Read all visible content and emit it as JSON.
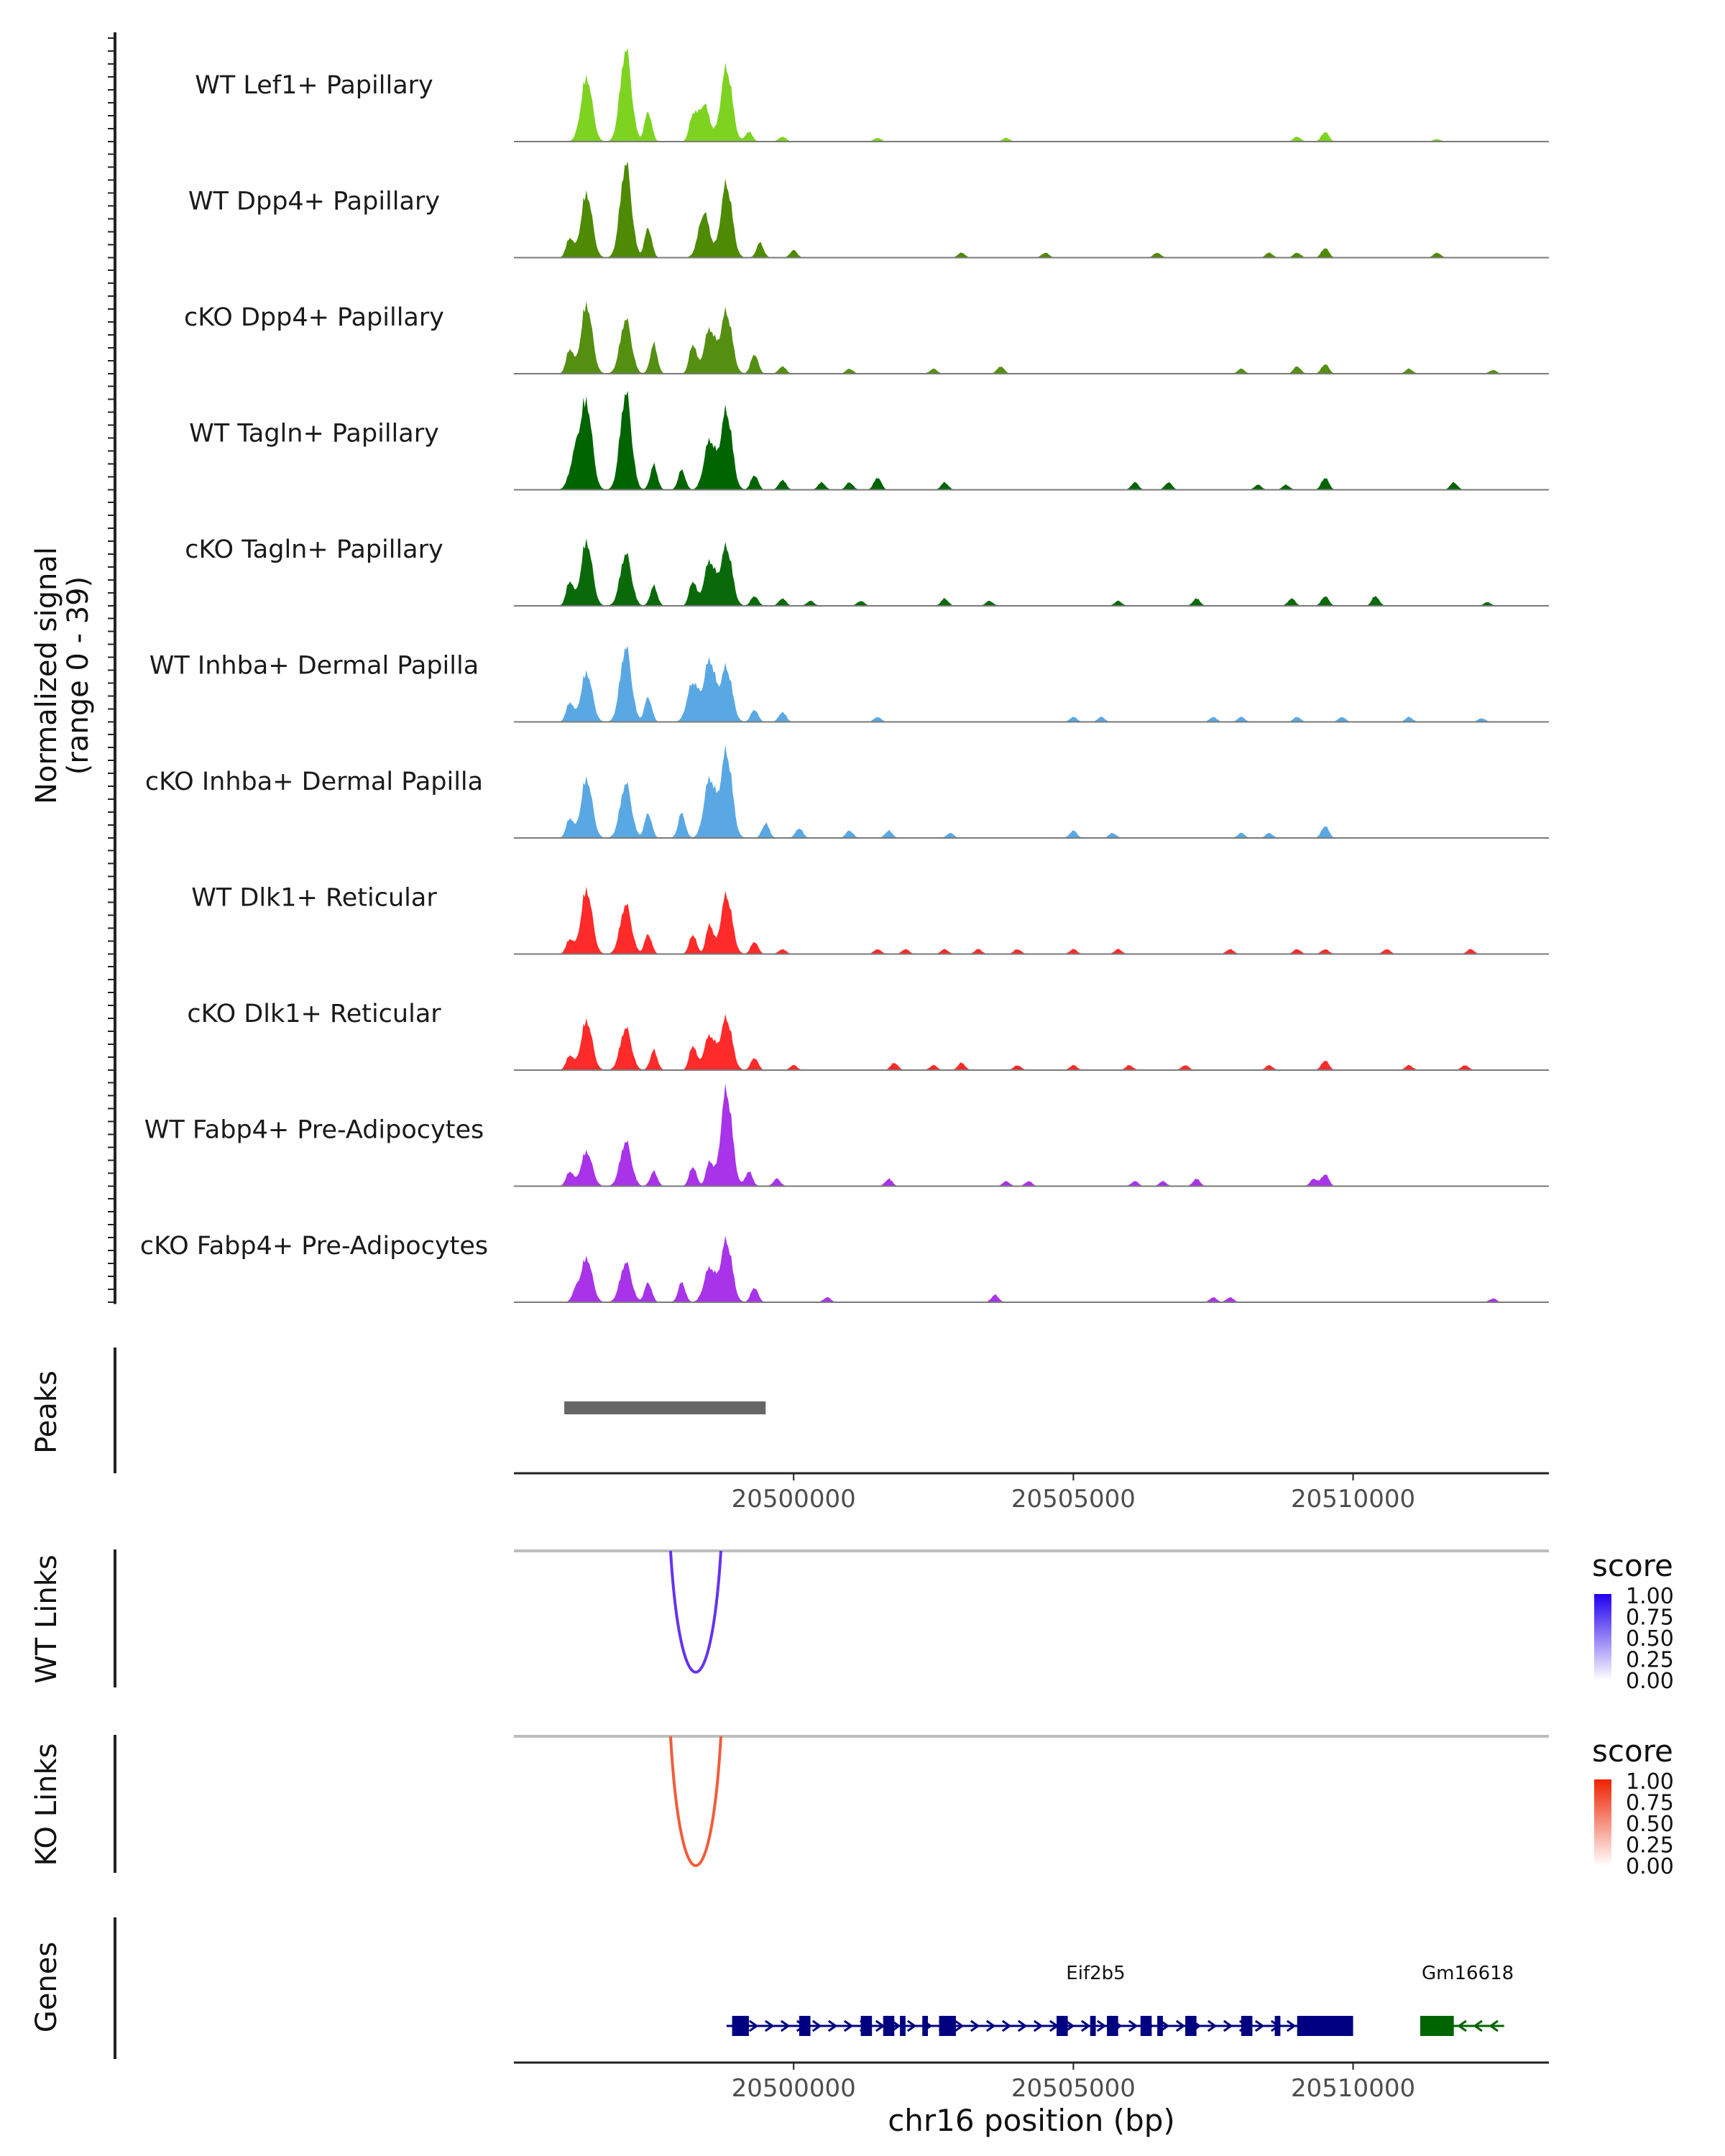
{
  "chart_data": {
    "type": "area",
    "title": "",
    "region": "chr16",
    "xlabel": "chr16 position (bp)",
    "x_tick_labels": [
      "20500000",
      "20505000",
      "20510000"
    ],
    "x_ticks": [
      20500000,
      20505000,
      20510000
    ],
    "xlim": [
      20495000,
      20513500
    ],
    "coverage": {
      "ylabel_line1": "Normalized signal",
      "ylabel_line2": "(range 0 - 39)",
      "ylim": [
        0,
        39
      ],
      "tracks": [
        {
          "name": "WT Lef1+ Papillary",
          "color": "#7ED321",
          "peaks": [
            [
              20496300,
              26
            ],
            [
              20497000,
              37
            ],
            [
              20497400,
              12
            ],
            [
              20498200,
              10
            ],
            [
              20498400,
              15
            ],
            [
              20498800,
              30
            ],
            [
              20499200,
              4
            ],
            [
              20499800,
              2
            ],
            [
              20501500,
              1.5
            ],
            [
              20503800,
              1.5
            ],
            [
              20509000,
              2
            ],
            [
              20509500,
              4
            ],
            [
              20511500,
              1
            ]
          ]
        },
        {
          "name": "WT Dpp4+ Papillary",
          "color": "#4E8A03",
          "peaks": [
            [
              20496000,
              8
            ],
            [
              20496300,
              26
            ],
            [
              20497000,
              38
            ],
            [
              20497400,
              12
            ],
            [
              20498400,
              18
            ],
            [
              20498800,
              30
            ],
            [
              20499400,
              6
            ],
            [
              20500000,
              3
            ],
            [
              20503000,
              2
            ],
            [
              20504500,
              2
            ],
            [
              20506500,
              2
            ],
            [
              20508500,
              2
            ],
            [
              20509000,
              2
            ],
            [
              20509500,
              4
            ],
            [
              20511500,
              2
            ]
          ]
        },
        {
          "name": "cKO Dpp4+ Papillary",
          "color": "#548F12",
          "peaks": [
            [
              20496000,
              10
            ],
            [
              20496300,
              28
            ],
            [
              20497000,
              22
            ],
            [
              20497500,
              12
            ],
            [
              20498200,
              12
            ],
            [
              20498500,
              18
            ],
            [
              20498800,
              25
            ],
            [
              20499300,
              8
            ],
            [
              20499800,
              3
            ],
            [
              20501000,
              2
            ],
            [
              20502500,
              2
            ],
            [
              20503700,
              3
            ],
            [
              20508000,
              2
            ],
            [
              20509000,
              3
            ],
            [
              20509500,
              4
            ],
            [
              20511000,
              2
            ],
            [
              20512500,
              1.5
            ]
          ]
        },
        {
          "name": "WT Tagln+ Papillary",
          "color": "#006400",
          "peaks": [
            [
              20496100,
              14
            ],
            [
              20496300,
              34
            ],
            [
              20497000,
              39
            ],
            [
              20497500,
              10
            ],
            [
              20498000,
              8
            ],
            [
              20498500,
              20
            ],
            [
              20498800,
              32
            ],
            [
              20499300,
              6
            ],
            [
              20499800,
              4
            ],
            [
              20500500,
              3
            ],
            [
              20501000,
              3
            ],
            [
              20501500,
              5
            ],
            [
              20502700,
              3
            ],
            [
              20506100,
              3
            ],
            [
              20506700,
              3
            ],
            [
              20508300,
              2
            ],
            [
              20508800,
              2
            ],
            [
              20509500,
              5
            ],
            [
              20511800,
              3
            ]
          ]
        },
        {
          "name": "cKO Tagln+ Papillary",
          "color": "#0A6A0A",
          "peaks": [
            [
              20496000,
              10
            ],
            [
              20496300,
              26
            ],
            [
              20497000,
              21
            ],
            [
              20497500,
              8
            ],
            [
              20498200,
              10
            ],
            [
              20498500,
              18
            ],
            [
              20498800,
              24
            ],
            [
              20499300,
              4
            ],
            [
              20499800,
              3
            ],
            [
              20500300,
              2
            ],
            [
              20501200,
              2
            ],
            [
              20502700,
              3
            ],
            [
              20503500,
              2
            ],
            [
              20505800,
              2
            ],
            [
              20507200,
              3
            ],
            [
              20508900,
              3
            ],
            [
              20509500,
              4
            ],
            [
              20510400,
              4
            ],
            [
              20512400,
              1.5
            ]
          ]
        },
        {
          "name": "WT Inhba+ Dermal Papilla",
          "color": "#5AA8E3",
          "peaks": [
            [
              20496000,
              8
            ],
            [
              20496300,
              20
            ],
            [
              20497000,
              30
            ],
            [
              20497400,
              10
            ],
            [
              20498200,
              16
            ],
            [
              20498500,
              25
            ],
            [
              20498800,
              22
            ],
            [
              20499300,
              5
            ],
            [
              20499800,
              4
            ],
            [
              20501500,
              2
            ],
            [
              20505000,
              2
            ],
            [
              20505500,
              2
            ],
            [
              20507500,
              2
            ],
            [
              20508000,
              2
            ],
            [
              20509000,
              2
            ],
            [
              20509800,
              2
            ],
            [
              20511000,
              2
            ],
            [
              20512300,
              1.5
            ]
          ]
        },
        {
          "name": "cKO Inhba+ Dermal Papilla",
          "color": "#5AA8E3",
          "peaks": [
            [
              20496000,
              8
            ],
            [
              20496300,
              24
            ],
            [
              20497000,
              22
            ],
            [
              20497400,
              10
            ],
            [
              20498000,
              10
            ],
            [
              20498500,
              24
            ],
            [
              20498800,
              35
            ],
            [
              20499500,
              6
            ],
            [
              20500100,
              4
            ],
            [
              20501000,
              3
            ],
            [
              20501700,
              3
            ],
            [
              20502800,
              2
            ],
            [
              20505000,
              3
            ],
            [
              20505700,
              2
            ],
            [
              20508000,
              2
            ],
            [
              20508500,
              2
            ],
            [
              20509500,
              5
            ]
          ]
        },
        {
          "name": "WT Dlk1+ Reticular",
          "color": "#FF2A2A",
          "peaks": [
            [
              20496000,
              6
            ],
            [
              20496300,
              26
            ],
            [
              20497000,
              20
            ],
            [
              20497400,
              8
            ],
            [
              20498200,
              8
            ],
            [
              20498500,
              12
            ],
            [
              20498800,
              24
            ],
            [
              20499300,
              5
            ],
            [
              20499800,
              2
            ],
            [
              20501500,
              2
            ],
            [
              20502000,
              2
            ],
            [
              20502700,
              2
            ],
            [
              20503300,
              2
            ],
            [
              20504000,
              2
            ],
            [
              20505000,
              2
            ],
            [
              20505800,
              2
            ],
            [
              20507800,
              2
            ],
            [
              20509000,
              2
            ],
            [
              20509500,
              2
            ],
            [
              20510600,
              2
            ],
            [
              20512100,
              2
            ]
          ]
        },
        {
          "name": "cKO Dlk1+ Reticular",
          "color": "#FF2A2A",
          "peaks": [
            [
              20496000,
              6
            ],
            [
              20496300,
              20
            ],
            [
              20497000,
              17
            ],
            [
              20497500,
              8
            ],
            [
              20498200,
              10
            ],
            [
              20498500,
              14
            ],
            [
              20498800,
              21
            ],
            [
              20499300,
              5
            ],
            [
              20500000,
              2
            ],
            [
              20501800,
              3
            ],
            [
              20502500,
              2
            ],
            [
              20503000,
              3
            ],
            [
              20504000,
              2
            ],
            [
              20505000,
              2
            ],
            [
              20506000,
              2
            ],
            [
              20507000,
              2
            ],
            [
              20508500,
              2
            ],
            [
              20509500,
              4
            ],
            [
              20511000,
              2
            ],
            [
              20512000,
              2
            ]
          ]
        },
        {
          "name": "WT Fabp4+ Pre-Adipocytes",
          "color": "#A833E8",
          "peaks": [
            [
              20496000,
              6
            ],
            [
              20496300,
              14
            ],
            [
              20497000,
              18
            ],
            [
              20497500,
              6
            ],
            [
              20498200,
              8
            ],
            [
              20498500,
              10
            ],
            [
              20498800,
              39
            ],
            [
              20499200,
              6
            ],
            [
              20499700,
              3
            ],
            [
              20501700,
              3
            ],
            [
              20503800,
              2
            ],
            [
              20504200,
              2
            ],
            [
              20506100,
              2
            ],
            [
              20506600,
              2
            ],
            [
              20507200,
              3
            ],
            [
              20509500,
              5
            ],
            [
              20509300,
              3
            ]
          ]
        },
        {
          "name": "cKO Fabp4+ Pre-Adipocytes",
          "color": "#A833E8",
          "peaks": [
            [
              20496100,
              4
            ],
            [
              20496300,
              18
            ],
            [
              20497000,
              16
            ],
            [
              20497400,
              8
            ],
            [
              20498000,
              8
            ],
            [
              20498500,
              14
            ],
            [
              20498800,
              25
            ],
            [
              20499300,
              6
            ],
            [
              20500600,
              2
            ],
            [
              20503600,
              3
            ],
            [
              20507500,
              2
            ],
            [
              20507800,
              2
            ],
            [
              20512500,
              1.5
            ]
          ]
        }
      ]
    },
    "peaks_track": {
      "label": "Peaks",
      "regions": [
        [
          20495900,
          20499500
        ]
      ],
      "color": "#666666"
    },
    "link_tracks": [
      {
        "label": "WT Links",
        "legend_title": "score",
        "color": "#6633EE",
        "legend_low": "#FFFFFF",
        "legend_high": "#2200EE",
        "legend_ticks": [
          "1.00",
          "0.75",
          "0.50",
          "0.25",
          "0.00"
        ],
        "links": [
          {
            "start": 20497800,
            "end": 20498700,
            "score": 0.75
          }
        ]
      },
      {
        "label": "KO Links",
        "legend_title": "score",
        "color": "#F25C3A",
        "legend_low": "#FFFFFF",
        "legend_high": "#EE2200",
        "legend_ticks": [
          "1.00",
          "0.75",
          "0.50",
          "0.25",
          "0.00"
        ],
        "links": [
          {
            "start": 20497800,
            "end": 20498700,
            "score": 0.8
          }
        ]
      }
    ],
    "genes_track": {
      "label": "Genes",
      "genes": [
        {
          "name": "Eif2b5",
          "start": 20498800,
          "end": 20510000,
          "strand": "+",
          "color": "#000080",
          "exons": [
            [
              20498900,
              20499200
            ],
            [
              20500100,
              20500300
            ],
            [
              20501200,
              20501400
            ],
            [
              20501600,
              20501800
            ],
            [
              20501900,
              20502000
            ],
            [
              20502300,
              20502400
            ],
            [
              20502600,
              20502900
            ],
            [
              20504700,
              20504900
            ],
            [
              20505300,
              20505400
            ],
            [
              20505600,
              20505800
            ],
            [
              20506200,
              20506400
            ],
            [
              20506500,
              20506600
            ],
            [
              20507000,
              20507200
            ],
            [
              20508000,
              20508200
            ],
            [
              20508600,
              20508700
            ],
            [
              20509000,
              20510000
            ]
          ]
        },
        {
          "name": "Gm16618",
          "start": 20511200,
          "end": 20512700,
          "strand": "-",
          "color": "#006400",
          "exons": [
            [
              20511200,
              20511800
            ]
          ]
        }
      ]
    }
  }
}
